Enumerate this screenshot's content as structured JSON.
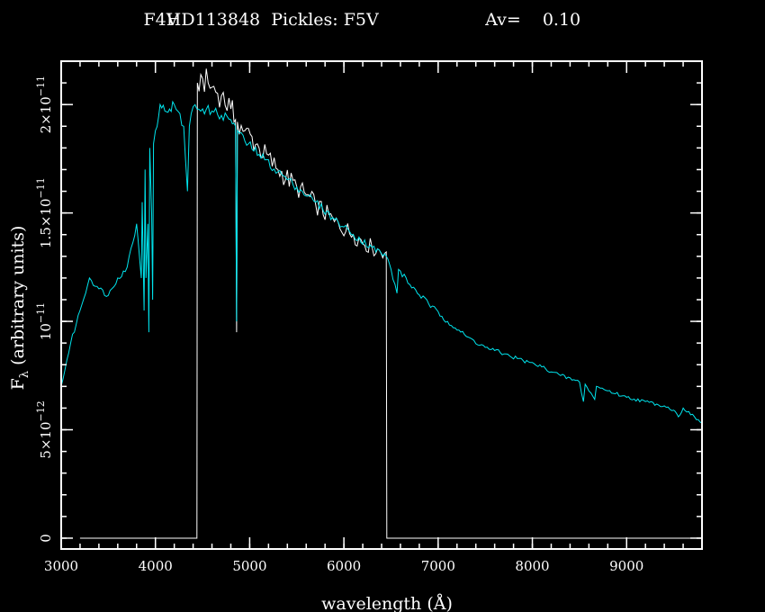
{
  "chart_data": {
    "type": "line",
    "title_parts": {
      "spectral_type": "F4V",
      "star": "HD113848",
      "pickles": "Pickles: F5V",
      "av_label": "Av=",
      "av_value": "0.10"
    },
    "xlabel": "wavelength (Å)",
    "ylabel_symbol": "F",
    "ylabel_subscript": "λ",
    "ylabel_rest": " (arbitrary units)",
    "xlim": [
      3000,
      9800
    ],
    "ylim": [
      -5e-13,
      2.2e-11
    ],
    "x_ticks": [
      {
        "value": 3000,
        "label": "3000"
      },
      {
        "value": 4000,
        "label": "4000"
      },
      {
        "value": 5000,
        "label": "5000"
      },
      {
        "value": 6000,
        "label": "6000"
      },
      {
        "value": 7000,
        "label": "7000"
      },
      {
        "value": 8000,
        "label": "8000"
      },
      {
        "value": 9000,
        "label": "9000"
      }
    ],
    "x_minor_step": 200,
    "y_ticks": [
      {
        "value": 0,
        "label": "0",
        "sup": ""
      },
      {
        "value": 5e-12,
        "label": "5×10",
        "sup": "−12"
      },
      {
        "value": 1e-11,
        "label": "10",
        "sup": "−11"
      },
      {
        "value": 1.5e-11,
        "label": "1.5×10",
        "sup": "−11"
      },
      {
        "value": 2e-11,
        "label": "2×10",
        "sup": "−11"
      }
    ],
    "y_minor_step": 1e-12,
    "series": [
      {
        "color": "#ffffff",
        "noise": 0.03,
        "x": [
          3200,
          4440,
          4445,
          4500,
          4600,
          4700,
          4800,
          4850,
          4861,
          4870,
          4950,
          5100,
          5300,
          5500,
          5700,
          5900,
          6100,
          6300,
          6450,
          6455,
          9800
        ],
        "y": [
          0,
          0,
          2.1e-11,
          2.12e-11,
          2.08e-11,
          2.04e-11,
          1.98e-11,
          1.93e-11,
          9.5e-12,
          1.92e-11,
          1.88e-11,
          1.8e-11,
          1.7e-11,
          1.62e-11,
          1.54e-11,
          1.46e-11,
          1.4e-11,
          1.34e-11,
          1.32e-11,
          0,
          0
        ]
      },
      {
        "color": "#00e5ee",
        "noise": 0.012,
        "x": [
          3000,
          3100,
          3200,
          3300,
          3400,
          3500,
          3600,
          3700,
          3800,
          3850,
          3860,
          3880,
          3890,
          3900,
          3920,
          3930,
          3940,
          3960,
          3970,
          3980,
          4000,
          4050,
          4100,
          4150,
          4200,
          4300,
          4340,
          4360,
          4400,
          4500,
          4600,
          4700,
          4800,
          4850,
          4861,
          4870,
          4950,
          5100,
          5300,
          5500,
          5700,
          5900,
          6100,
          6300,
          6450,
          6500,
          6563,
          6580,
          6700,
          6900,
          7100,
          7300,
          7500,
          7700,
          7900,
          8100,
          8300,
          8500,
          8542,
          8560,
          8662,
          8680,
          8800,
          9000,
          9200,
          9400,
          9500,
          9550,
          9600,
          9800
        ],
        "y": [
          7e-12,
          9e-12,
          1.05e-11,
          1.2e-11,
          1.15e-11,
          1.12e-11,
          1.2e-11,
          1.25e-11,
          1.45e-11,
          1.2e-11,
          1.55e-11,
          1.05e-11,
          1.7e-11,
          1.2e-11,
          1.45e-11,
          9.5e-12,
          1.8e-11,
          1.5e-11,
          1.1e-11,
          1.82e-11,
          1.88e-11,
          2e-11,
          1.97e-11,
          1.98e-11,
          2e-11,
          1.9e-11,
          1.6e-11,
          1.9e-11,
          1.99e-11,
          1.98e-11,
          1.97e-11,
          1.95e-11,
          1.93e-11,
          1.9e-11,
          1e-11,
          1.88e-11,
          1.83e-11,
          1.77e-11,
          1.69e-11,
          1.62e-11,
          1.55e-11,
          1.47e-11,
          1.4e-11,
          1.34e-11,
          1.3e-11,
          1.24e-11,
          1.13e-11,
          1.24e-11,
          1.17e-11,
          1.08e-11,
          1e-11,
          9.3e-12,
          8.8e-12,
          8.5e-12,
          8.2e-12,
          7.9e-12,
          7.5e-12,
          7.2e-12,
          6.3e-12,
          7.1e-12,
          6.4e-12,
          7e-12,
          6.8e-12,
          6.5e-12,
          6.3e-12,
          6.1e-12,
          5.9e-12,
          5.6e-12,
          6e-12,
          5.3e-12
        ]
      }
    ]
  }
}
